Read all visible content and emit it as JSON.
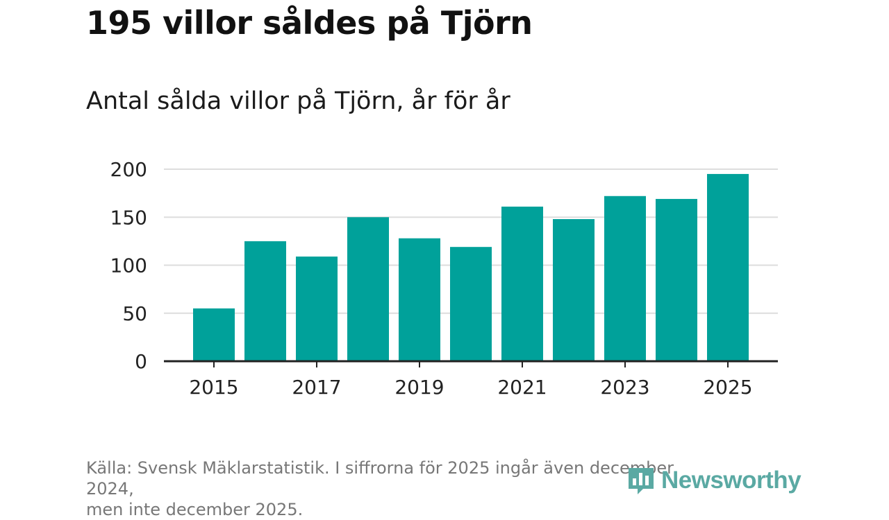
{
  "headline": "195 villor såldes på Tjörn",
  "source_line1": "Källa: Svensk Mäklarstatistik. I siffrorna för 2025 ingår även december 2024,",
  "source_line2": "men inte december 2025.",
  "logo": {
    "text": "Newsworthy",
    "icon": "bar-chart-logo-icon",
    "color": "#5aa9a3"
  },
  "colors": {
    "bar": "#00a19a",
    "grid": "#dddddd",
    "axis": "#222222"
  },
  "chart_data": {
    "type": "bar",
    "title": "Antal sålda villor på Tjörn, år för år",
    "xlabel": "",
    "ylabel": "",
    "categories": [
      "2015",
      "2016",
      "2017",
      "2018",
      "2019",
      "2020",
      "2021",
      "2022",
      "2023",
      "2024",
      "2025"
    ],
    "values": [
      55,
      125,
      109,
      150,
      128,
      119,
      161,
      148,
      172,
      169,
      195
    ],
    "x_tick_labels": [
      "2015",
      "2017",
      "2019",
      "2021",
      "2023",
      "2025"
    ],
    "y_ticks": [
      0,
      50,
      100,
      150,
      200
    ],
    "ylim": [
      0,
      200
    ],
    "grid": true
  }
}
